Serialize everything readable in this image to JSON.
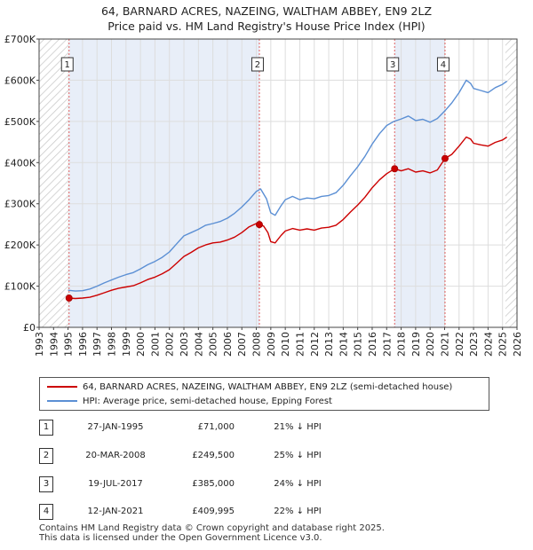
{
  "title_line1": "64, BARNARD ACRES, NAZEING, WALTHAM ABBEY, EN9 2LZ",
  "title_line2": "Price paid vs. HM Land Registry's House Price Index (HPI)",
  "legend": {
    "property": "64, BARNARD ACRES, NAZEING, WALTHAM ABBEY, EN9 2LZ (semi-detached house)",
    "hpi": "HPI: Average price, semi-detached house, Epping Forest"
  },
  "sales": [
    {
      "num": "1",
      "date": "27-JAN-1995",
      "price": "£71,000",
      "diff": "21% ↓ HPI"
    },
    {
      "num": "2",
      "date": "20-MAR-2008",
      "price": "£249,500",
      "diff": "25% ↓ HPI"
    },
    {
      "num": "3",
      "date": "19-JUL-2017",
      "price": "£385,000",
      "diff": "24% ↓ HPI"
    },
    {
      "num": "4",
      "date": "12-JAN-2021",
      "price": "£409,995",
      "diff": "22% ↓ HPI"
    }
  ],
  "footer_line1": "Contains HM Land Registry data © Crown copyright and database right 2025.",
  "footer_line2": "This data is licensed under the Open Government Licence v3.0.",
  "chart_data": {
    "type": "line",
    "title": "Price paid vs. HM Land Registry's House Price Index (HPI)",
    "xlim": [
      1993,
      2026
    ],
    "ylim": [
      0,
      700000
    ],
    "x_ticks": [
      1993,
      1994,
      1995,
      1996,
      1997,
      1998,
      1999,
      2000,
      2001,
      2002,
      2003,
      2004,
      2005,
      2006,
      2007,
      2008,
      2009,
      2010,
      2011,
      2012,
      2013,
      2014,
      2015,
      2016,
      2017,
      2018,
      2019,
      2020,
      2021,
      2022,
      2023,
      2024,
      2025,
      2026
    ],
    "y_ticks": [
      0,
      100000,
      200000,
      300000,
      400000,
      500000,
      600000,
      700000
    ],
    "y_tick_labels": [
      "£0",
      "£100K",
      "£200K",
      "£300K",
      "£400K",
      "£500K",
      "£600K",
      "£700K"
    ],
    "hatch_before": 1995.0,
    "hatch_after": 2025.2,
    "series": [
      {
        "name": "HPI: Average price, semi-detached house, Epping Forest",
        "color": "#5b8fd4",
        "points": [
          [
            1995.0,
            90000
          ],
          [
            1995.5,
            88000
          ],
          [
            1996.0,
            89000
          ],
          [
            1996.5,
            93000
          ],
          [
            1997.0,
            100000
          ],
          [
            1997.5,
            108000
          ],
          [
            1998.0,
            115000
          ],
          [
            1998.5,
            122000
          ],
          [
            1999.0,
            128000
          ],
          [
            1999.5,
            133000
          ],
          [
            2000.0,
            142000
          ],
          [
            2000.5,
            152000
          ],
          [
            2001.0,
            160000
          ],
          [
            2001.5,
            170000
          ],
          [
            2002.0,
            183000
          ],
          [
            2002.5,
            203000
          ],
          [
            2003.0,
            222000
          ],
          [
            2003.5,
            230000
          ],
          [
            2004.0,
            238000
          ],
          [
            2004.5,
            248000
          ],
          [
            2005.0,
            252000
          ],
          [
            2005.5,
            257000
          ],
          [
            2006.0,
            265000
          ],
          [
            2006.5,
            277000
          ],
          [
            2007.0,
            292000
          ],
          [
            2007.5,
            310000
          ],
          [
            2008.0,
            330000
          ],
          [
            2008.3,
            336000
          ],
          [
            2008.7,
            312000
          ],
          [
            2009.0,
            278000
          ],
          [
            2009.3,
            272000
          ],
          [
            2009.7,
            295000
          ],
          [
            2010.0,
            310000
          ],
          [
            2010.5,
            318000
          ],
          [
            2011.0,
            310000
          ],
          [
            2011.5,
            314000
          ],
          [
            2012.0,
            312000
          ],
          [
            2012.5,
            318000
          ],
          [
            2013.0,
            320000
          ],
          [
            2013.5,
            327000
          ],
          [
            2014.0,
            345000
          ],
          [
            2014.5,
            368000
          ],
          [
            2015.0,
            390000
          ],
          [
            2015.5,
            415000
          ],
          [
            2016.0,
            445000
          ],
          [
            2016.5,
            470000
          ],
          [
            2017.0,
            490000
          ],
          [
            2017.5,
            500000
          ],
          [
            2018.0,
            506000
          ],
          [
            2018.5,
            513000
          ],
          [
            2019.0,
            502000
          ],
          [
            2019.5,
            505000
          ],
          [
            2020.0,
            498000
          ],
          [
            2020.5,
            507000
          ],
          [
            2021.0,
            525000
          ],
          [
            2021.5,
            545000
          ],
          [
            2022.0,
            570000
          ],
          [
            2022.5,
            600000
          ],
          [
            2022.8,
            592000
          ],
          [
            2023.0,
            580000
          ],
          [
            2023.5,
            575000
          ],
          [
            2024.0,
            570000
          ],
          [
            2024.5,
            582000
          ],
          [
            2025.0,
            590000
          ],
          [
            2025.3,
            598000
          ]
        ]
      },
      {
        "name": "64, BARNARD ACRES, NAZEING, WALTHAM ABBEY, EN9 2LZ (semi-detached house)",
        "color": "#cc0000",
        "points": [
          [
            1995.07,
            71000
          ],
          [
            1995.5,
            70000
          ],
          [
            1996.0,
            71000
          ],
          [
            1996.5,
            73000
          ],
          [
            1997.0,
            78000
          ],
          [
            1997.5,
            84000
          ],
          [
            1998.0,
            90000
          ],
          [
            1998.5,
            95000
          ],
          [
            1999.0,
            98000
          ],
          [
            1999.5,
            101000
          ],
          [
            2000.0,
            108000
          ],
          [
            2000.5,
            116000
          ],
          [
            2001.0,
            122000
          ],
          [
            2001.5,
            130000
          ],
          [
            2002.0,
            140000
          ],
          [
            2002.5,
            156000
          ],
          [
            2003.0,
            172000
          ],
          [
            2003.5,
            182000
          ],
          [
            2004.0,
            193000
          ],
          [
            2004.5,
            200000
          ],
          [
            2005.0,
            205000
          ],
          [
            2005.5,
            207000
          ],
          [
            2006.0,
            212000
          ],
          [
            2006.5,
            219000
          ],
          [
            2007.0,
            230000
          ],
          [
            2007.5,
            244000
          ],
          [
            2008.0,
            252000
          ],
          [
            2008.21,
            249500
          ],
          [
            2008.5,
            246000
          ],
          [
            2008.8,
            230000
          ],
          [
            2009.0,
            208000
          ],
          [
            2009.3,
            205000
          ],
          [
            2009.7,
            223000
          ],
          [
            2010.0,
            234000
          ],
          [
            2010.5,
            240000
          ],
          [
            2011.0,
            236000
          ],
          [
            2011.5,
            239000
          ],
          [
            2012.0,
            236000
          ],
          [
            2012.5,
            241000
          ],
          [
            2013.0,
            243000
          ],
          [
            2013.5,
            248000
          ],
          [
            2014.0,
            262000
          ],
          [
            2014.5,
            280000
          ],
          [
            2015.0,
            297000
          ],
          [
            2015.5,
            316000
          ],
          [
            2016.0,
            339000
          ],
          [
            2016.5,
            358000
          ],
          [
            2017.0,
            373000
          ],
          [
            2017.55,
            385000
          ],
          [
            2018.0,
            380000
          ],
          [
            2018.5,
            385000
          ],
          [
            2019.0,
            377000
          ],
          [
            2019.5,
            380000
          ],
          [
            2020.0,
            375000
          ],
          [
            2020.5,
            382000
          ],
          [
            2021.03,
            409995
          ],
          [
            2021.5,
            420000
          ],
          [
            2022.0,
            440000
          ],
          [
            2022.5,
            462000
          ],
          [
            2022.8,
            457000
          ],
          [
            2023.0,
            447000
          ],
          [
            2023.5,
            443000
          ],
          [
            2024.0,
            440000
          ],
          [
            2024.5,
            449000
          ],
          [
            2025.0,
            455000
          ],
          [
            2025.3,
            462000
          ]
        ]
      }
    ],
    "sales": [
      {
        "label": "1",
        "x": 1995.07,
        "y": 71000
      },
      {
        "label": "2",
        "x": 2008.21,
        "y": 249500
      },
      {
        "label": "3",
        "x": 2017.55,
        "y": 385000
      },
      {
        "label": "4",
        "x": 2021.03,
        "y": 409995
      }
    ]
  }
}
